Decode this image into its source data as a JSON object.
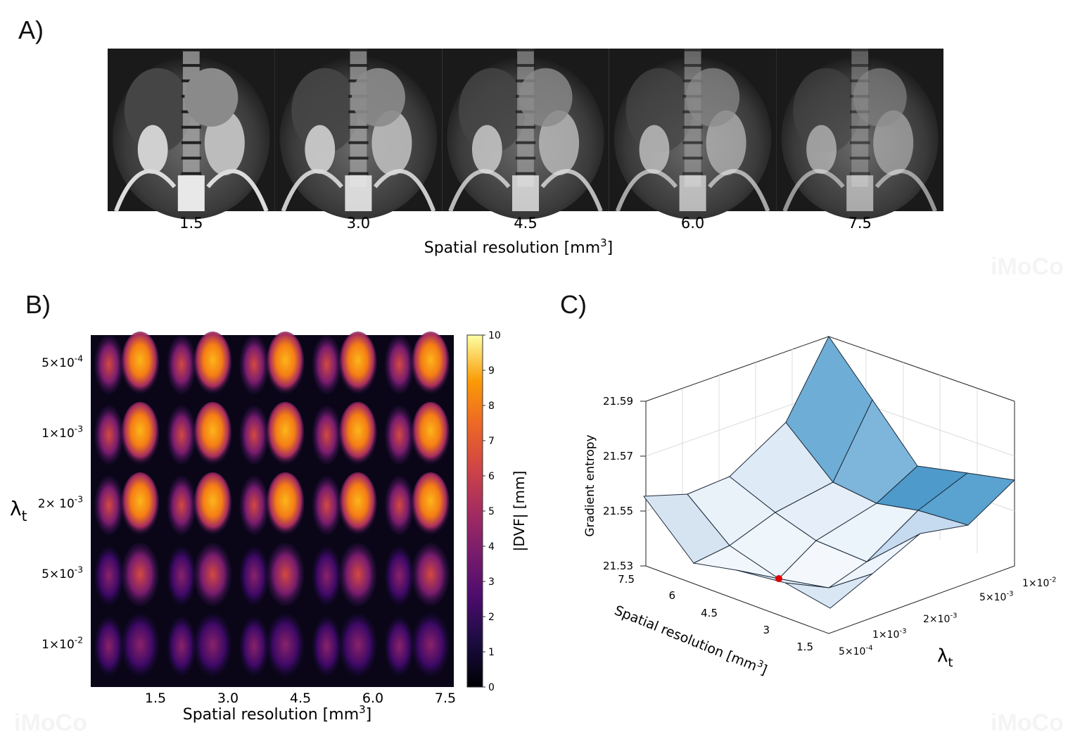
{
  "panel_a": {
    "label": "A)",
    "tick_labels": [
      "1.5",
      "3.0",
      "4.5",
      "6.0",
      "7.5"
    ],
    "xlabel": "Spatial resolution [mm",
    "xlabel_sup": "3",
    "xlabel_end": "]"
  },
  "panel_b": {
    "label": "B)",
    "y_title": "λ",
    "y_title_sub": "t",
    "row_labels": [
      {
        "base": "5×10",
        "exp": "-4"
      },
      {
        "base": "1×10",
        "exp": "-3"
      },
      {
        "base": "2× 10",
        "exp": "-3"
      },
      {
        "base": "5×10",
        "exp": "-3"
      },
      {
        "base": "1×10",
        "exp": "-2"
      }
    ],
    "x_ticks": [
      "1.5",
      "3.0",
      "4.5",
      "6.0",
      "7.5"
    ],
    "xlabel": "Spatial resolution [mm",
    "xlabel_sup": "3",
    "xlabel_end": "]",
    "colorbar": {
      "label": "|DVF| [mm]",
      "ticks": [
        "0",
        "1",
        "2",
        "3",
        "4",
        "5",
        "6",
        "7",
        "8",
        "9",
        "10"
      ],
      "range": [
        0,
        10
      ]
    },
    "row_intensity": [
      0.78,
      0.8,
      0.76,
      0.55,
      0.38
    ]
  },
  "panel_c": {
    "label": "C)",
    "zlabel": "Gradient entropy",
    "z_ticks": [
      "21.59",
      "21.57",
      "21.55",
      "21.53"
    ],
    "res_ticks": [
      "7.5",
      "6",
      "4.5",
      "3",
      "1.5"
    ],
    "res_label": "Spatial resolution [mm",
    "res_label_sup": "3",
    "res_label_end": "]",
    "lambda_ticks": [
      {
        "base": "5×10",
        "exp": "-4"
      },
      {
        "base": "1×10",
        "exp": "-3"
      },
      {
        "base": "2×10",
        "exp": "-3"
      },
      {
        "base": "5×10",
        "exp": "-3"
      },
      {
        "base": "1×10",
        "exp": "-2"
      }
    ],
    "lambda_label": "λ",
    "lambda_label_sub": "t"
  },
  "watermarks": [
    "iMoCo",
    "iMoCo",
    "iMoCo"
  ],
  "chart_data": [
    {
      "type": "heatmap",
      "title": "",
      "xlabel": "Spatial resolution [mm3]",
      "ylabel": "λt",
      "categories": [
        "1.5",
        "3.0",
        "4.5",
        "6.0",
        "7.5"
      ],
      "rows": [
        "5×10-4",
        "1×10-3",
        "2×10-3",
        "5×10-3",
        "1×10-2"
      ],
      "colorbar_label": "|DVF| [mm]",
      "colorbar_range": [
        0,
        10
      ]
    },
    {
      "type": "surface",
      "zlabel": "Gradient entropy",
      "x_categories_resolution": [
        "7.5",
        "6",
        "4.5",
        "3",
        "1.5"
      ],
      "y_categories_lambda": [
        "5×10-4",
        "1×10-3",
        "2×10-3",
        "5×10-3",
        "1×10-2"
      ],
      "zlim": [
        21.53,
        21.59
      ],
      "highlight": {
        "resolution": "3",
        "lambda": "5×10-4"
      }
    }
  ]
}
